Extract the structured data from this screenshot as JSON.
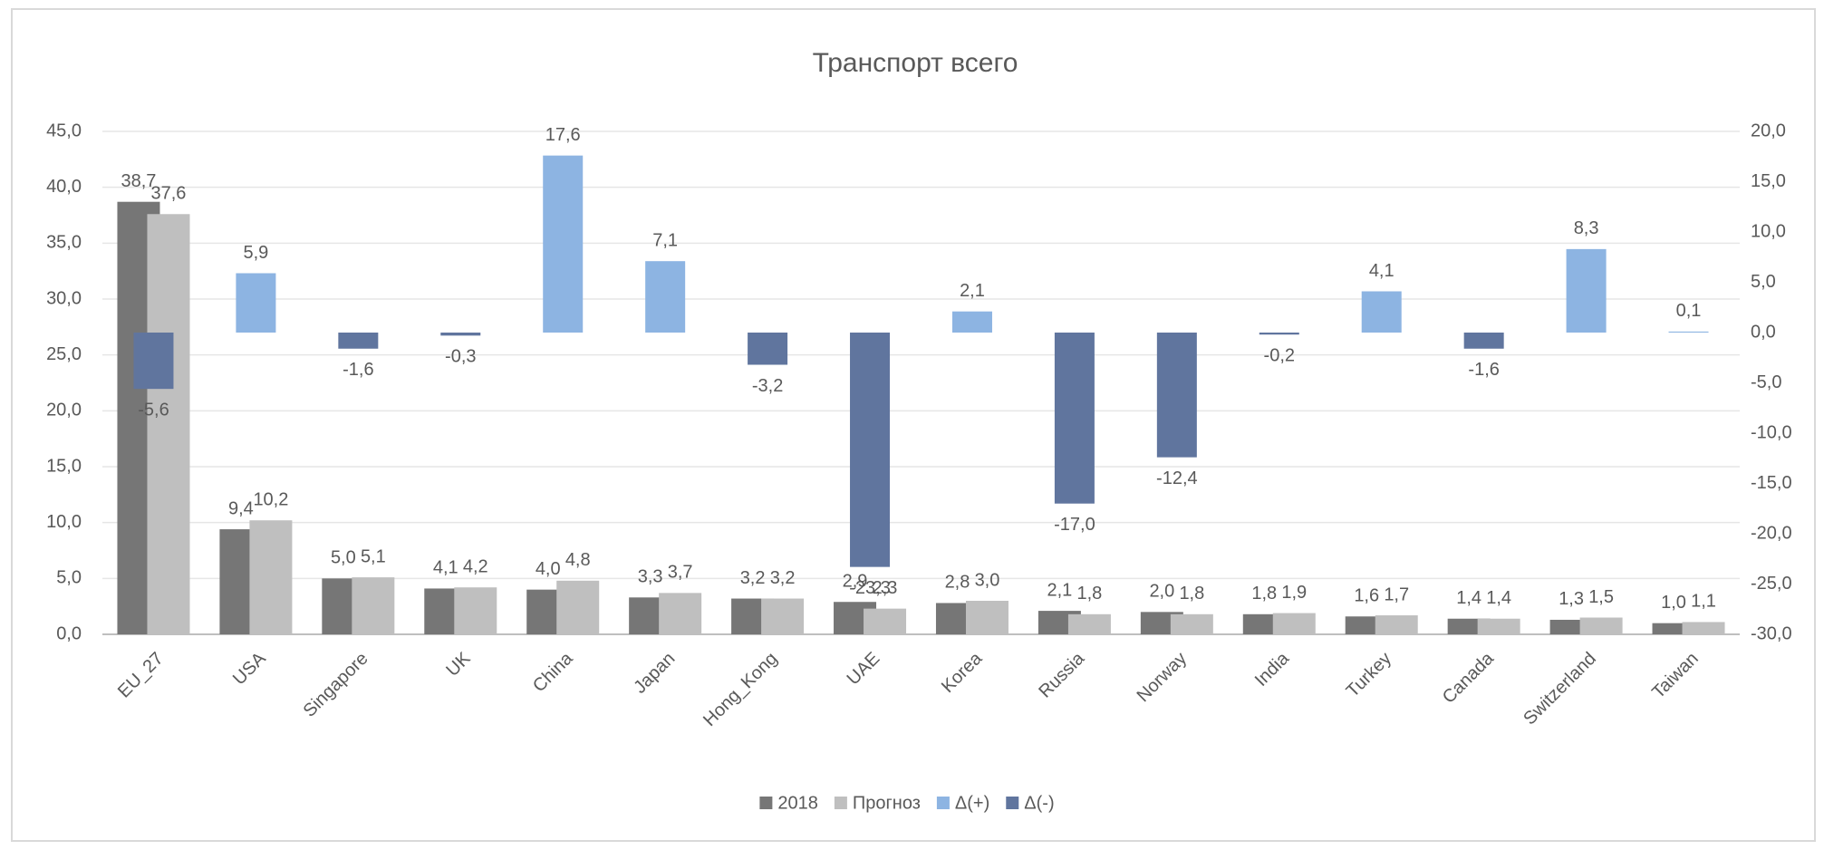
{
  "chart_data": {
    "type": "bar",
    "title": "Транспорт всего",
    "categories": [
      "EU_27",
      "USA",
      "Singapore",
      "UK",
      "China",
      "Japan",
      "Hong_Kong",
      "UAE",
      "Korea",
      "Russia",
      "Norway",
      "India",
      "Turkey",
      "Canada",
      "Switzerland",
      "Taiwan"
    ],
    "series": [
      {
        "name": "2018",
        "color": "#767676",
        "values": [
          38.7,
          9.4,
          5.0,
          4.1,
          4.0,
          3.3,
          3.2,
          2.9,
          2.8,
          2.1,
          2.0,
          1.8,
          1.6,
          1.4,
          1.3,
          1.0
        ],
        "value_labels": [
          "38,7",
          "9,4",
          "5,0",
          "4,1",
          "4,0",
          "3,3",
          "3,2",
          "2,9",
          "2,8",
          "2,1",
          "2,0",
          "1,8",
          "1,6",
          "1,4",
          "1,3",
          "1,0"
        ]
      },
      {
        "name": "Прогноз",
        "color": "#bfbfbf",
        "values": [
          37.6,
          10.2,
          5.1,
          4.2,
          4.8,
          3.7,
          3.2,
          2.3,
          3.0,
          1.8,
          1.8,
          1.9,
          1.7,
          1.4,
          1.5,
          1.1
        ],
        "value_labels": [
          "37,6",
          "10,2",
          "5,1",
          "4,2",
          "4,8",
          "3,7",
          "3,2",
          "2,3",
          "3,0",
          "1,8",
          "1,8",
          "1,9",
          "1,7",
          "1,4",
          "1,5",
          "1,1"
        ]
      },
      {
        "name": "Δ(+)",
        "color": "#8db4e2",
        "axis": "y2",
        "values": [
          null,
          5.9,
          null,
          null,
          17.6,
          7.1,
          null,
          null,
          2.1,
          null,
          null,
          null,
          4.1,
          null,
          8.3,
          0.1
        ],
        "value_labels": [
          null,
          "5,9",
          null,
          null,
          "17,6",
          "7,1",
          null,
          null,
          "2,1",
          null,
          null,
          null,
          "4,1",
          null,
          "8,3",
          "0,1"
        ]
      },
      {
        "name": "Δ(-)",
        "color": "#60759e",
        "axis": "y2",
        "values": [
          -5.6,
          null,
          -1.6,
          -0.3,
          null,
          null,
          -3.2,
          -23.3,
          null,
          -17.0,
          -12.4,
          -0.2,
          null,
          -1.6,
          null,
          null
        ],
        "value_labels": [
          "-5,6",
          null,
          "-1,6",
          "-0,3",
          null,
          null,
          "-3,2",
          "-23,3",
          null,
          "-17,0",
          "-12,4",
          "-0,2",
          null,
          "-1,6",
          null,
          null
        ]
      }
    ],
    "ylim": [
      0,
      45
    ],
    "yticks": [
      {
        "value": 0,
        "label": "0,0"
      },
      {
        "value": 5,
        "label": "5,0"
      },
      {
        "value": 10,
        "label": "10,0"
      },
      {
        "value": 15,
        "label": "15,0"
      },
      {
        "value": 20,
        "label": "20,0"
      },
      {
        "value": 25,
        "label": "25,0"
      },
      {
        "value": 30,
        "label": "30,0"
      },
      {
        "value": 35,
        "label": "35,0"
      },
      {
        "value": 40,
        "label": "40,0"
      },
      {
        "value": 45,
        "label": "45,0"
      }
    ],
    "y2lim": [
      -30,
      20
    ],
    "y2ticks": [
      {
        "value": -30,
        "label": "-30,0"
      },
      {
        "value": -25,
        "label": "-25,0"
      },
      {
        "value": -20,
        "label": "-20,0"
      },
      {
        "value": -15,
        "label": "-15,0"
      },
      {
        "value": -10,
        "label": "-10,0"
      },
      {
        "value": -5,
        "label": "-5,0"
      },
      {
        "value": 0,
        "label": "0,0"
      },
      {
        "value": 5,
        "label": "5,0"
      },
      {
        "value": 10,
        "label": "10,0"
      },
      {
        "value": 15,
        "label": "15,0"
      },
      {
        "value": 20,
        "label": "20,0"
      }
    ],
    "grid": true,
    "legend": "bottom"
  }
}
